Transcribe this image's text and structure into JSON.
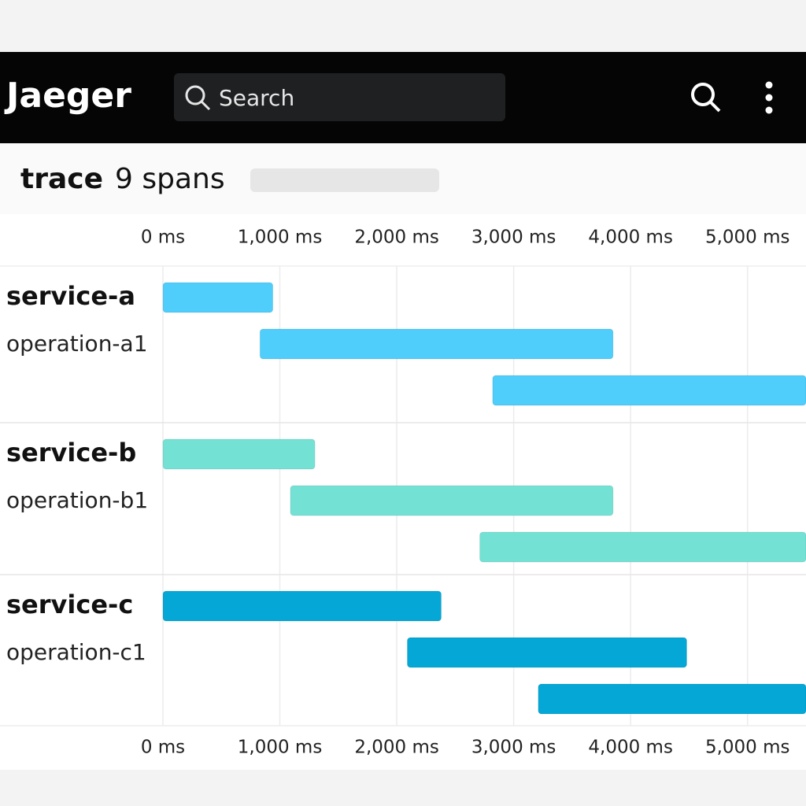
{
  "header": {
    "logo": "Jaeger",
    "search_placeholder": "Search"
  },
  "trace": {
    "title": "trace",
    "span_count": "9 spans"
  },
  "chart_data": {
    "type": "gantt",
    "xlim": [
      0,
      5500
    ],
    "xticks": [
      {
        "value": 0,
        "label": "0 ms"
      },
      {
        "value": 1000,
        "label": "1,000 ms"
      },
      {
        "value": 2000,
        "label": "2,000 ms"
      },
      {
        "value": 3000,
        "label": "3,000 ms"
      },
      {
        "value": 4000,
        "label": "4,000 ms"
      },
      {
        "value": 5000,
        "label": "5,000 ms"
      }
    ],
    "grid": true,
    "series": [
      {
        "name": "service-a",
        "operation": "operation-a1",
        "color": "#4fcdfb",
        "starts": [
          0,
          830,
          2820
        ],
        "ends": [
          940,
          3850,
          5500
        ]
      },
      {
        "name": "service-b",
        "operation": "operation-b1",
        "color": "#74e1d5",
        "starts": [
          0,
          1090,
          2710
        ],
        "ends": [
          1300,
          3850,
          5500
        ]
      },
      {
        "name": "service-c",
        "operation": "operation-c1",
        "color": "#04a7d5",
        "starts": [
          0,
          2090,
          3210
        ],
        "ends": [
          2380,
          4480,
          5500
        ]
      }
    ]
  }
}
